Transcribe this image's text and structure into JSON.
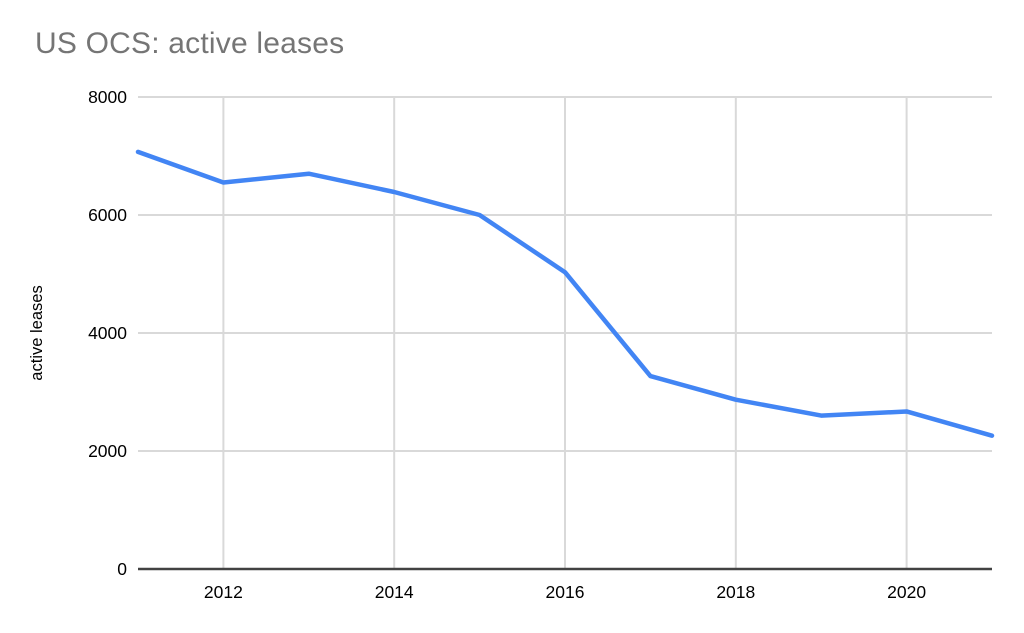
{
  "page": {
    "background_color": "#ffffff"
  },
  "header": {
    "title": "US OCS: active leases",
    "title_color": "#757575"
  },
  "chart_data": {
    "type": "line",
    "title": "US OCS: active leases",
    "xlabel": "",
    "ylabel": "active leases",
    "x": [
      2011,
      2012,
      2013,
      2014,
      2015,
      2016,
      2017,
      2018,
      2019,
      2020,
      2021
    ],
    "series": [
      {
        "name": "active leases",
        "color": "#4285f4",
        "values": [
          7070,
          6550,
          6700,
          6390,
          6000,
          5030,
          3270,
          2870,
          2600,
          2670,
          2260
        ]
      }
    ],
    "xlim": [
      2011,
      2021
    ],
    "ylim": [
      0,
      8000
    ],
    "x_ticks": [
      2012,
      2014,
      2016,
      2018,
      2020
    ],
    "y_ticks": [
      0,
      2000,
      4000,
      6000,
      8000
    ],
    "grid": true,
    "legend_position": "none",
    "gridline_color": "#d9d9d9",
    "axis_line_color": "#424242",
    "tick_label_color": "#000000",
    "ylabel_color": "#000000"
  }
}
